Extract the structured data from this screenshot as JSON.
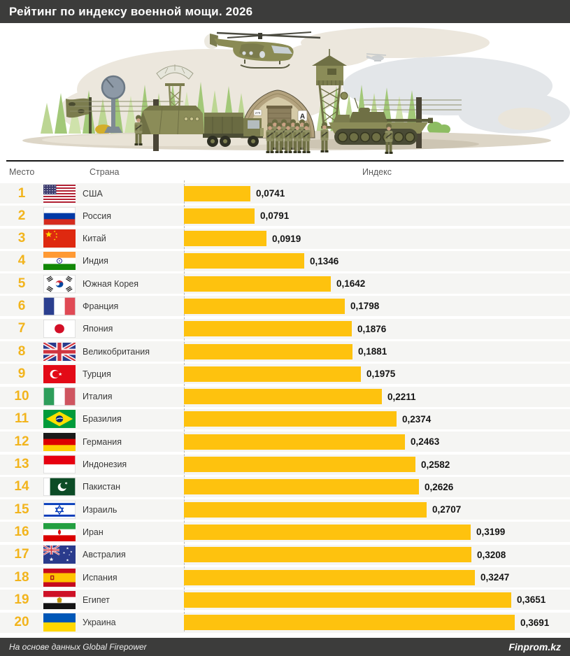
{
  "header": {
    "title": "Рейтинг по индексу военной мощи. 2026"
  },
  "columns": {
    "rank": "Место",
    "country": "Страна",
    "index": "Индекс"
  },
  "illustration": {
    "hangar_sign": "A",
    "hangar_sign_small": "270"
  },
  "colors": {
    "bar": "#fec20e",
    "rank_number": "#f2b41c",
    "band_bg": "#3c3c3b",
    "row_bg": "#f5f5f3"
  },
  "table": {
    "rows": [
      {
        "rank": "1",
        "country": "США",
        "value": "0,0741",
        "v": 0.0741,
        "flag": "usa"
      },
      {
        "rank": "2",
        "country": "Россия",
        "value": "0,0791",
        "v": 0.0791,
        "flag": "russia"
      },
      {
        "rank": "3",
        "country": "Китай",
        "value": "0,0919",
        "v": 0.0919,
        "flag": "china"
      },
      {
        "rank": "4",
        "country": "Индия",
        "value": "0,1346",
        "v": 0.1346,
        "flag": "india"
      },
      {
        "rank": "5",
        "country": "Южная Корея",
        "value": "0,1642",
        "v": 0.1642,
        "flag": "south-korea"
      },
      {
        "rank": "6",
        "country": "Франция",
        "value": "0,1798",
        "v": 0.1798,
        "flag": "france"
      },
      {
        "rank": "7",
        "country": "Япония",
        "value": "0,1876",
        "v": 0.1876,
        "flag": "japan"
      },
      {
        "rank": "8",
        "country": "Великобритания",
        "value": "0,1881",
        "v": 0.1881,
        "flag": "uk"
      },
      {
        "rank": "9",
        "country": "Турция",
        "value": "0,1975",
        "v": 0.1975,
        "flag": "turkey"
      },
      {
        "rank": "10",
        "country": "Италия",
        "value": "0,2211",
        "v": 0.2211,
        "flag": "italy"
      },
      {
        "rank": "11",
        "country": "Бразилия",
        "value": "0,2374",
        "v": 0.2374,
        "flag": "brazil"
      },
      {
        "rank": "12",
        "country": "Германия",
        "value": "0,2463",
        "v": 0.2463,
        "flag": "germany"
      },
      {
        "rank": "13",
        "country": "Индонезия",
        "value": "0,2582",
        "v": 0.2582,
        "flag": "indonesia"
      },
      {
        "rank": "14",
        "country": "Пакистан",
        "value": "0,2626",
        "v": 0.2626,
        "flag": "pakistan"
      },
      {
        "rank": "15",
        "country": "Израиль",
        "value": "0,2707",
        "v": 0.2707,
        "flag": "israel"
      },
      {
        "rank": "16",
        "country": "Иран",
        "value": "0,3199",
        "v": 0.3199,
        "flag": "iran"
      },
      {
        "rank": "17",
        "country": "Австралия",
        "value": "0,3208",
        "v": 0.3208,
        "flag": "australia"
      },
      {
        "rank": "18",
        "country": "Испания",
        "value": "0,3247",
        "v": 0.3247,
        "flag": "spain"
      },
      {
        "rank": "19",
        "country": "Египет",
        "value": "0,3651",
        "v": 0.3651,
        "flag": "egypt"
      },
      {
        "rank": "20",
        "country": "Украина",
        "value": "0,3691",
        "v": 0.3691,
        "flag": "ukraine"
      }
    ]
  },
  "footer": {
    "source": "На основе данных Global Firepower",
    "brand": "Finprom.kz"
  },
  "chart_data": {
    "type": "bar",
    "orientation": "horizontal",
    "title": "Рейтинг по индексу военной мощи. 2026",
    "categories": [
      "США",
      "Россия",
      "Китай",
      "Индия",
      "Южная Корея",
      "Франция",
      "Япония",
      "Великобритания",
      "Турция",
      "Италия",
      "Бразилия",
      "Германия",
      "Индонезия",
      "Пакистан",
      "Израиль",
      "Иран",
      "Австралия",
      "Испания",
      "Египет",
      "Украина"
    ],
    "values": [
      0.0741,
      0.0791,
      0.0919,
      0.1346,
      0.1642,
      0.1798,
      0.1876,
      0.1881,
      0.1975,
      0.2211,
      0.2374,
      0.2463,
      0.2582,
      0.2626,
      0.2707,
      0.3199,
      0.3208,
      0.3247,
      0.3651,
      0.3691
    ],
    "value_labels": [
      "0,0741",
      "0,0791",
      "0,0919",
      "0,1346",
      "0,1642",
      "0,1798",
      "0,1876",
      "0,1881",
      "0,1975",
      "0,2211",
      "0,2374",
      "0,2463",
      "0,2582",
      "0,2626",
      "0,2707",
      "0,3199",
      "0,3208",
      "0,3247",
      "0,3651",
      "0,3691"
    ],
    "ranks": [
      1,
      2,
      3,
      4,
      5,
      6,
      7,
      8,
      9,
      10,
      11,
      12,
      13,
      14,
      15,
      16,
      17,
      18,
      19,
      20
    ],
    "xlabel": "Индекс",
    "ylabel": "Страна",
    "xlim": [
      0,
      0.3691
    ],
    "grid": false,
    "legend": "none",
    "bar_color": "#fec20e",
    "source": "На основе данных Global Firepower"
  }
}
